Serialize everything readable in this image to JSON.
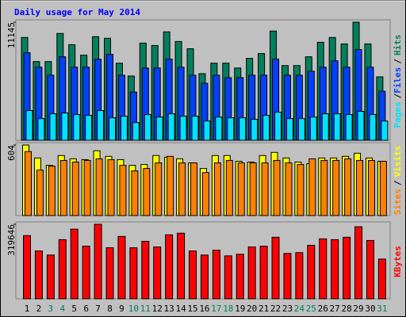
{
  "chart_data": [
    {
      "type": "bar",
      "title": "Daily usage for May 2014",
      "legend_separator": "/",
      "ylim": [
        0,
        11145
      ],
      "yticks": [
        11145
      ],
      "series": [
        {
          "name": "Hits",
          "color": "#00805c",
          "values": [
            9703,
            7428,
            7428,
            10081,
            9020,
            8035,
            9778,
            9627,
            7277,
            6064,
            9172,
            8944,
            10233,
            9323,
            8641,
            6291,
            7277,
            7277,
            6822,
            7732,
            8186,
            10309,
            7049,
            7049,
            7883,
            9248,
            9702,
            9096,
            11145,
            9096,
            5988
          ]
        },
        {
          "name": "Files",
          "color": "#0040ff",
          "values": [
            8262,
            6898,
            6140,
            7883,
            6898,
            6898,
            7656,
            8111,
            6140,
            4548,
            6822,
            6822,
            7656,
            6898,
            6140,
            5382,
            6140,
            5912,
            5912,
            6140,
            6140,
            7656,
            6140,
            6140,
            6519,
            6898,
            7504,
            6898,
            8565,
            6898,
            4624
          ]
        },
        {
          "name": "Pages",
          "color": "#00e0ff",
          "values": [
            2805,
            2047,
            2501,
            2577,
            2426,
            2350,
            2805,
            2122,
            2274,
            1668,
            2426,
            2198,
            2501,
            2274,
            2274,
            1819,
            2198,
            2122,
            2122,
            1971,
            2350,
            2653,
            2047,
            2047,
            2198,
            2501,
            2501,
            2426,
            2729,
            2426,
            1819
          ]
        }
      ]
    },
    {
      "type": "bar",
      "legend_separator": "/",
      "ylim": [
        0,
        604
      ],
      "yticks": [
        604
      ],
      "series": [
        {
          "name": "Visits",
          "color": "#ffff00",
          "values": [
            604,
            493,
            430,
            514,
            486,
            479,
            555,
            507,
            479,
            430,
            437,
            514,
            500,
            486,
            451,
            403,
            514,
            514,
            465,
            458,
            514,
            541,
            493,
            458,
            444,
            493,
            493,
            507,
            534,
            493,
            465
          ]
        },
        {
          "name": "Sites",
          "color": "#ff8000",
          "values": [
            548,
            389,
            423,
            472,
            458,
            472,
            486,
            479,
            430,
            382,
            403,
            451,
            507,
            451,
            451,
            368,
            451,
            472,
            451,
            451,
            451,
            472,
            451,
            437,
            486,
            472,
            472,
            486,
            472,
            472,
            465
          ]
        }
      ]
    },
    {
      "type": "bar",
      "ylim": [
        0,
        319646
      ],
      "yticks": [
        319646
      ],
      "categories": [
        "1",
        "2",
        "3",
        "4",
        "5",
        "6",
        "7",
        "8",
        "9",
        "10",
        "11",
        "12",
        "13",
        "14",
        "15",
        "16",
        "17",
        "18",
        "19",
        "20",
        "21",
        "22",
        "23",
        "24",
        "25",
        "26",
        "27",
        "28",
        "29",
        "30",
        "31"
      ],
      "category_colors": [
        "#000000",
        "#000000",
        "#00805c",
        "#00805c",
        "#000000",
        "#000000",
        "#000000",
        "#000000",
        "#000000",
        "#00805c",
        "#00805c",
        "#000000",
        "#000000",
        "#000000",
        "#000000",
        "#000000",
        "#00805c",
        "#00805c",
        "#000000",
        "#000000",
        "#000000",
        "#000000",
        "#000000",
        "#00805c",
        "#00805c",
        "#000000",
        "#000000",
        "#000000",
        "#000000",
        "#000000",
        "#00805c"
      ],
      "series": [
        {
          "name": "KBytes",
          "color": "#ff0000",
          "values": [
            271003,
            204990,
            187618,
            253631,
            298798,
            225836,
            319646,
            218888,
            267529,
            218888,
            246682,
            222362,
            274478,
            281427,
            204990,
            187618,
            208464,
            184143,
            191092,
            222362,
            225836,
            264055,
            194566,
            198041,
            229310,
            257106,
            253631,
            264055,
            309223,
            250157,
            170246
          ]
        }
      ]
    }
  ]
}
